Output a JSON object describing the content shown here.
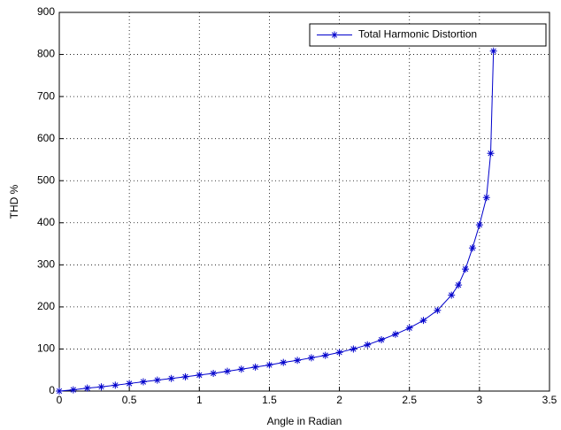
{
  "chart_data": {
    "type": "line",
    "x": [
      0,
      0.1,
      0.2,
      0.3,
      0.4,
      0.5,
      0.6,
      0.7,
      0.8,
      0.9,
      1.0,
      1.1,
      1.2,
      1.3,
      1.4,
      1.5,
      1.6,
      1.7,
      1.8,
      1.9,
      2.0,
      2.1,
      2.2,
      2.3,
      2.4,
      2.5,
      2.6,
      2.7,
      2.8,
      2.85,
      2.9,
      2.95,
      3.0,
      3.05,
      3.08,
      3.1
    ],
    "series": [
      {
        "name": "Total Harmonic Distortion",
        "color": "#0000cc",
        "values": [
          0,
          3,
          7,
          10,
          14,
          18,
          22,
          26,
          30,
          34,
          38,
          42,
          47,
          52,
          57,
          62,
          68,
          73,
          79,
          85,
          92,
          100,
          110,
          122,
          135,
          150,
          168,
          192,
          228,
          252,
          290,
          340,
          395,
          460,
          565,
          808
        ]
      }
    ],
    "xlabel": "Angle in Radian",
    "ylabel": "THD %",
    "xlim": [
      0,
      3.5
    ],
    "ylim": [
      0,
      900
    ],
    "xticks": [
      0,
      0.5,
      1,
      1.5,
      2,
      2.5,
      3,
      3.5
    ],
    "yticks": [
      0,
      100,
      200,
      300,
      400,
      500,
      600,
      700,
      800,
      900
    ],
    "grid": true,
    "legend": "northeast",
    "marker": "star"
  }
}
